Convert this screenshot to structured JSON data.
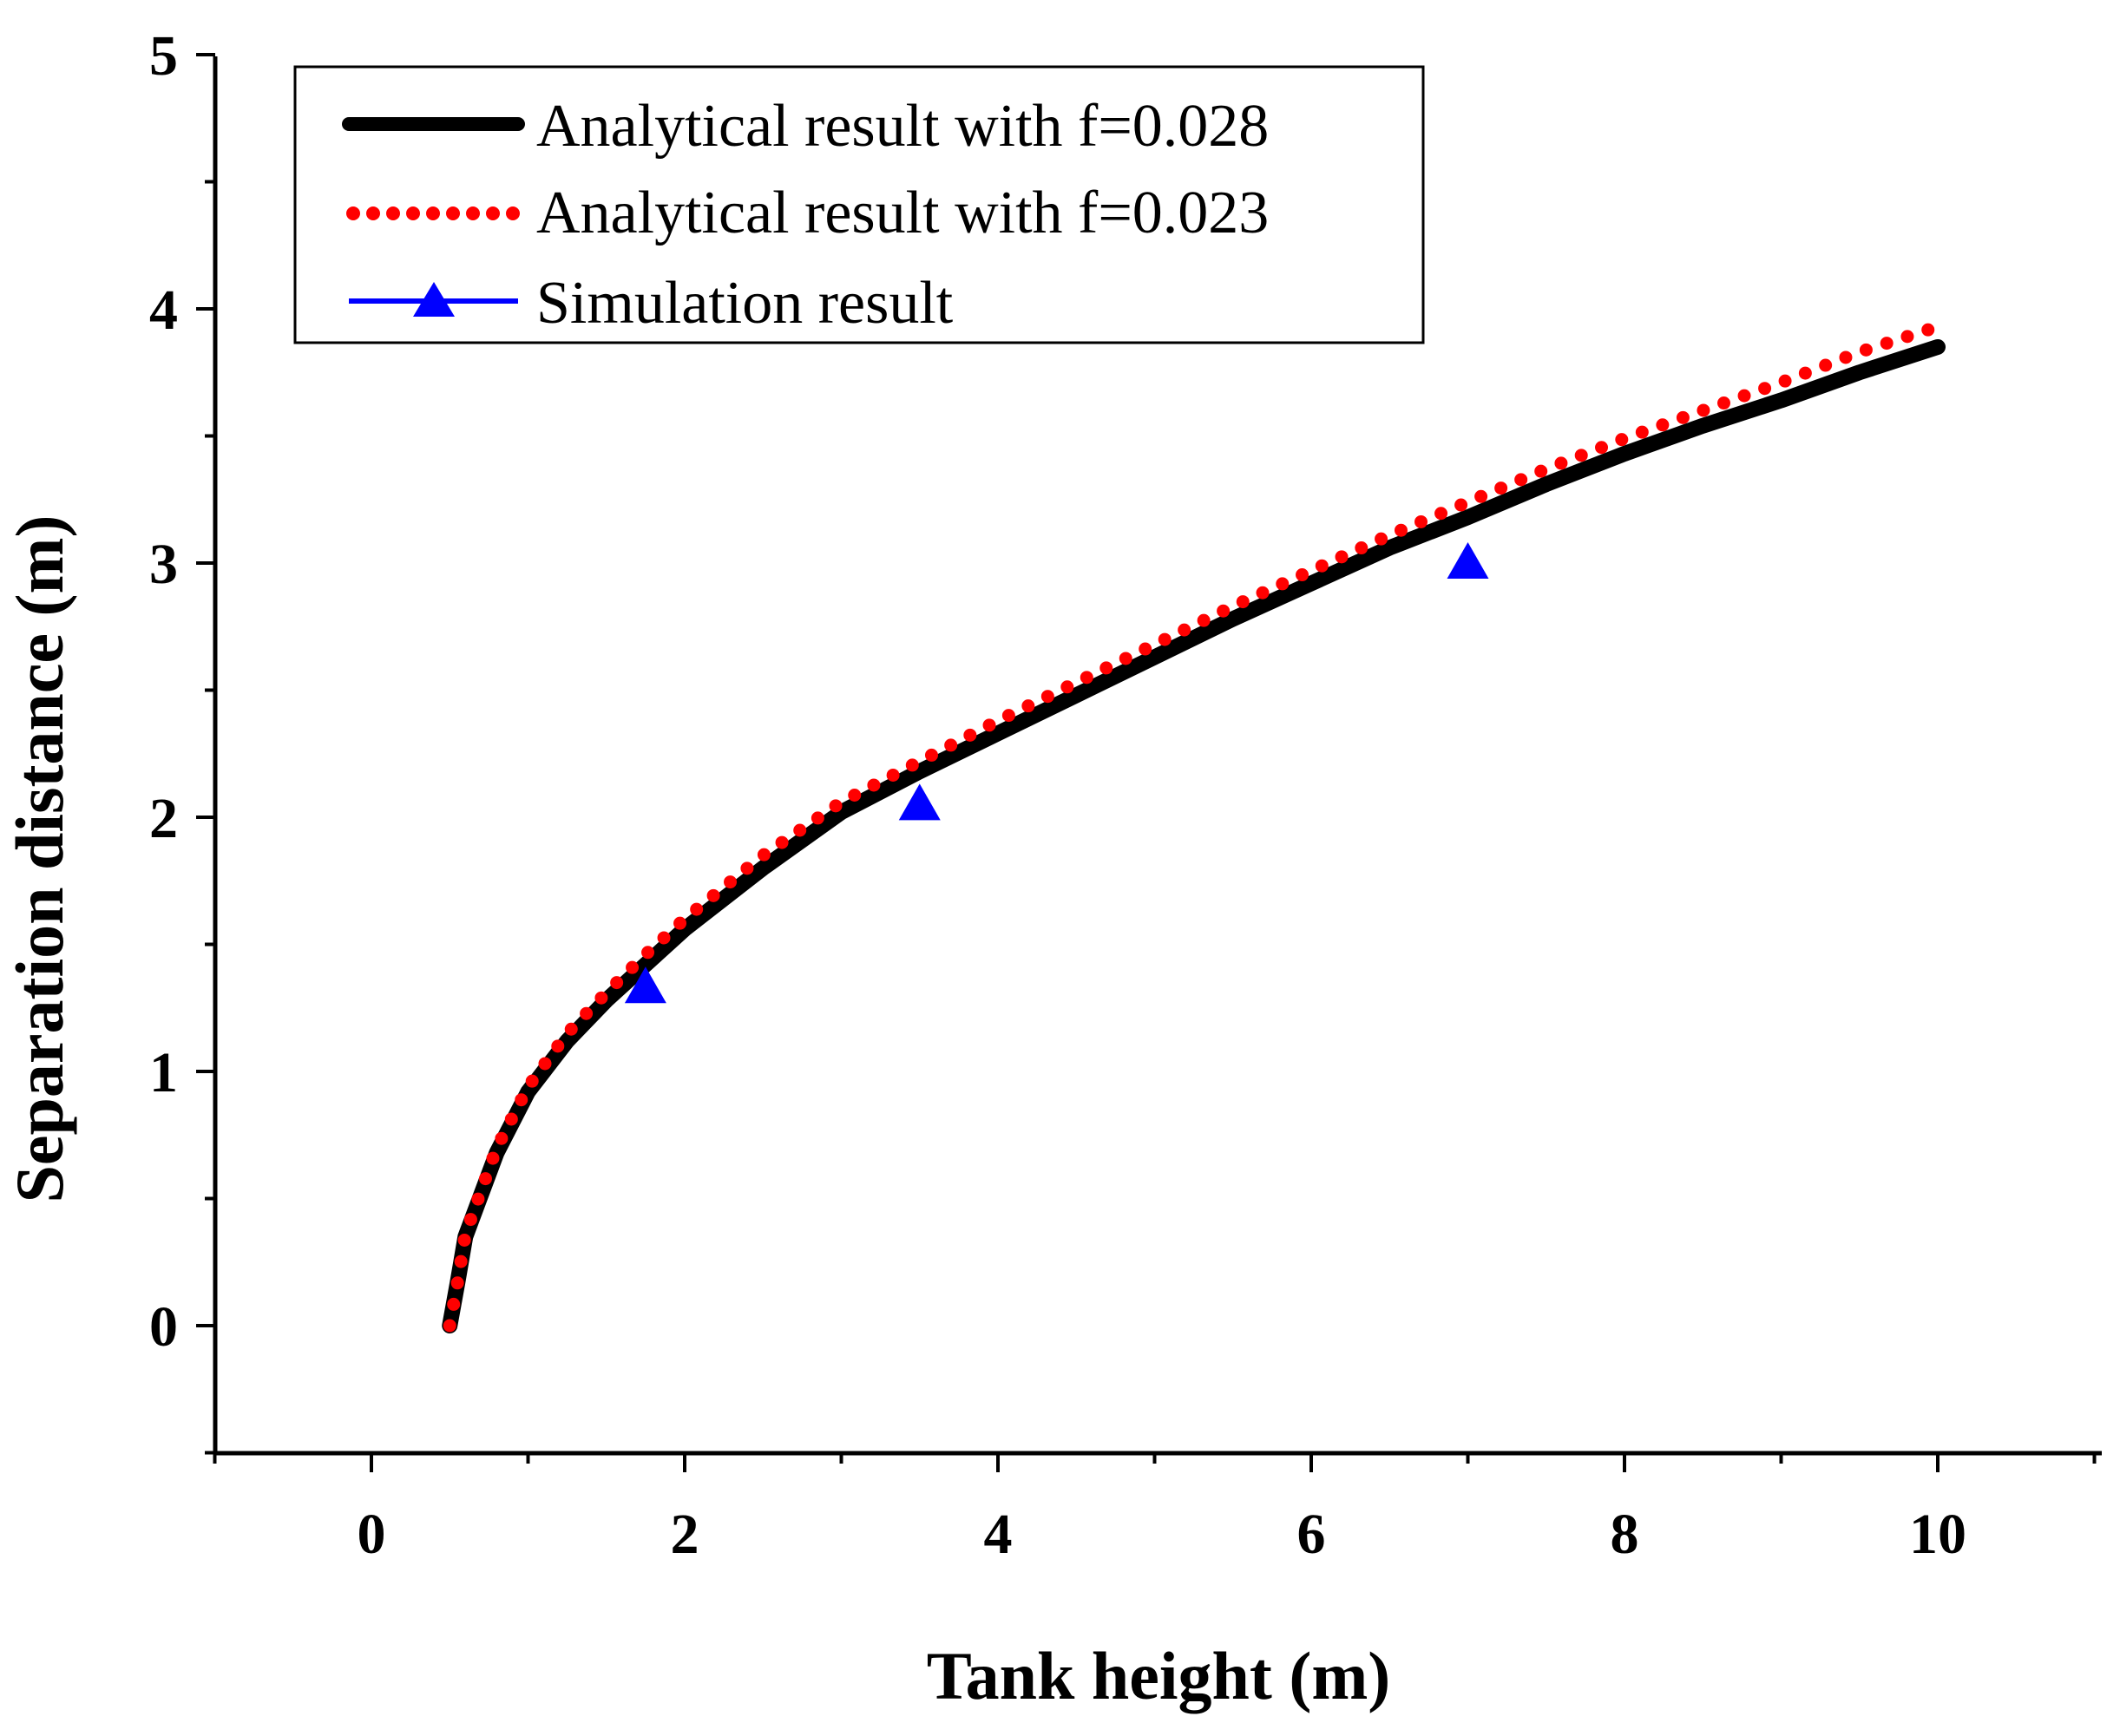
{
  "chart_data": {
    "type": "line",
    "title": "",
    "xlabel": "Tank height (m)",
    "ylabel": "Separation distance (m)",
    "xlim": [
      -1,
      11
    ],
    "ylim": [
      -0.5,
      5
    ],
    "xticks": [
      0,
      2,
      4,
      6,
      8,
      10
    ],
    "xtick_labels": [
      "0",
      "2",
      "4",
      "6",
      "8",
      "10"
    ],
    "yticks": [
      0,
      1,
      2,
      3,
      4,
      5
    ],
    "ytick_labels": [
      "0",
      "1",
      "2",
      "3",
      "4",
      "5"
    ],
    "grid": false,
    "legend_position": "top-left",
    "series": [
      {
        "name": "Analytical result with f=0.028",
        "style": "solid",
        "color": "#000000",
        "x": [
          0.5,
          0.55,
          0.6,
          0.8,
          1.0,
          1.25,
          1.5,
          1.75,
          2.0,
          2.5,
          3.0,
          3.5,
          4.0,
          4.5,
          5.0,
          5.5,
          6.0,
          6.5,
          7.0,
          7.5,
          8.0,
          8.5,
          9.0,
          9.5,
          10.0
        ],
        "y": [
          0.0,
          0.17,
          0.35,
          0.68,
          0.92,
          1.12,
          1.28,
          1.42,
          1.56,
          1.8,
          2.02,
          2.18,
          2.33,
          2.48,
          2.63,
          2.78,
          2.92,
          3.06,
          3.18,
          3.31,
          3.43,
          3.54,
          3.64,
          3.75,
          3.85
        ]
      },
      {
        "name": "Analytical result with f=0.023",
        "style": "dotted",
        "color": "#ff0000",
        "x": [
          0.5,
          0.55,
          0.6,
          0.8,
          1.0,
          1.25,
          1.5,
          1.75,
          2.0,
          2.5,
          3.0,
          3.5,
          4.0,
          4.5,
          5.0,
          5.5,
          6.0,
          6.5,
          7.0,
          7.5,
          8.0,
          8.5,
          9.0,
          9.5,
          10.0
        ],
        "y": [
          0.0,
          0.17,
          0.36,
          0.7,
          0.94,
          1.15,
          1.31,
          1.46,
          1.6,
          1.85,
          2.06,
          2.22,
          2.38,
          2.53,
          2.68,
          2.83,
          2.97,
          3.11,
          3.24,
          3.37,
          3.49,
          3.6,
          3.71,
          3.83,
          3.93
        ]
      },
      {
        "name": "Simulation result",
        "style": "markers",
        "marker": "triangle",
        "color": "#0000ff",
        "x": [
          1.75,
          3.5,
          7.0
        ],
        "y": [
          1.33,
          2.05,
          3.0
        ]
      }
    ]
  }
}
